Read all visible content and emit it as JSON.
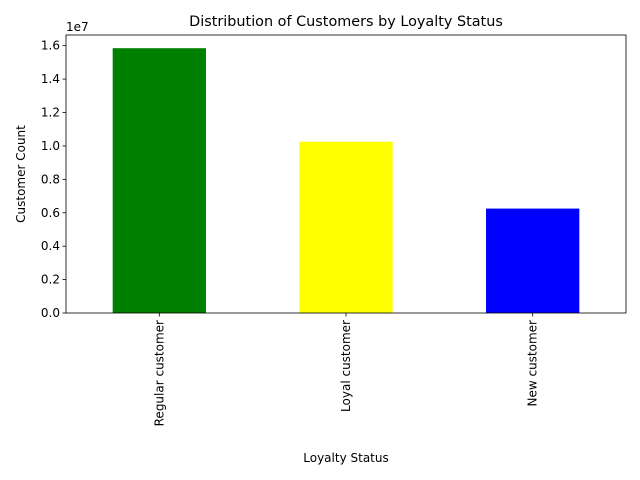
{
  "chart_data": {
    "type": "bar",
    "title": "Distribution of Customers by Loyalty Status",
    "xlabel": "Loyalty Status",
    "ylabel": "Customer Count",
    "y_offset_label": "1e7",
    "categories": [
      "Regular customer",
      "Loyal customer",
      "New customer"
    ],
    "values": [
      15850000,
      10250000,
      6250000
    ],
    "colors": [
      "#008000",
      "#ffff00",
      "#0000ff"
    ],
    "ylim": [
      0,
      16640000
    ],
    "y_ticks": [
      0,
      2000000,
      4000000,
      6000000,
      8000000,
      10000000,
      12000000,
      14000000,
      16000000
    ],
    "y_tick_labels": [
      "0.0",
      "0.2",
      "0.4",
      "0.6",
      "0.8",
      "1.0",
      "1.2",
      "1.4",
      "1.6"
    ],
    "grid": false,
    "legend": "none"
  }
}
